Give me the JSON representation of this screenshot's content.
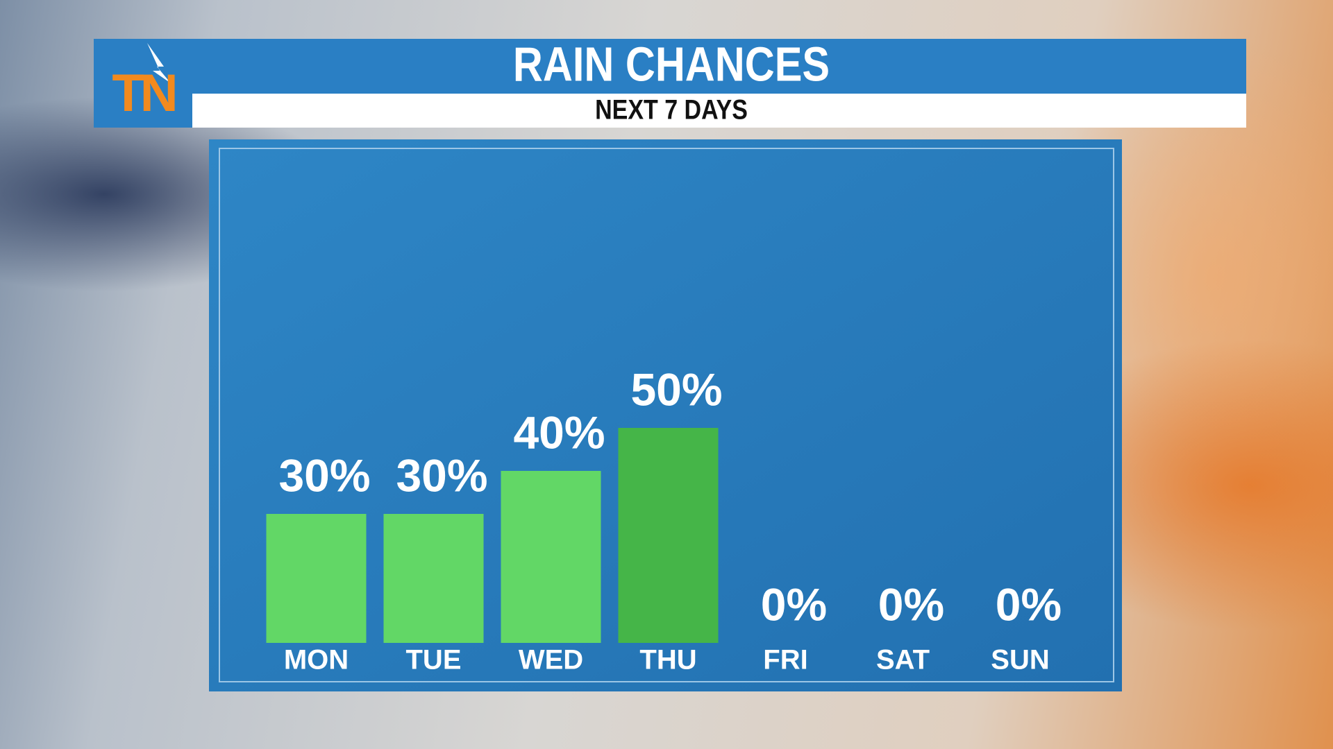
{
  "logo_text": "TN",
  "chart_data": {
    "type": "bar",
    "title": "RAIN CHANCES",
    "subtitle": "NEXT 7 DAYS",
    "categories": [
      "MON",
      "TUE",
      "WED",
      "THU",
      "FRI",
      "SAT",
      "SUN"
    ],
    "values": [
      30,
      30,
      40,
      50,
      0,
      0,
      0
    ],
    "value_labels": [
      "30%",
      "30%",
      "40%",
      "50%",
      "0%",
      "0%",
      "0%"
    ],
    "colors": [
      "#62d766",
      "#62d766",
      "#62d766",
      "#45b548",
      "#62d766",
      "#62d766",
      "#62d766"
    ],
    "ylim": [
      0,
      100
    ]
  }
}
